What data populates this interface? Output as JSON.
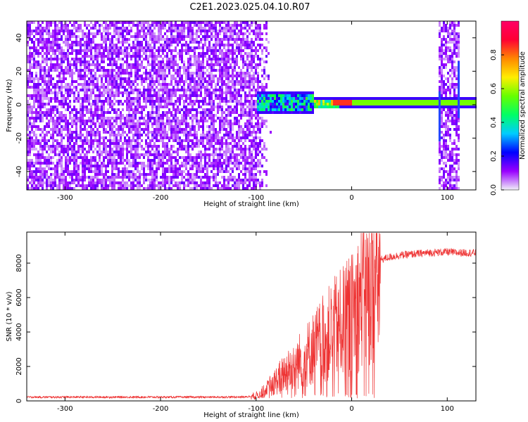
{
  "figure_title": "C2E1.2023.025.04.10.R07",
  "chart_data": [
    {
      "type": "heatmap",
      "title": "C2E1.2023.025.04.10.R07",
      "xlabel": "Height of straight line (km)",
      "ylabel": "Frequency (Hz)",
      "xlim": [
        -340,
        130
      ],
      "ylim": [
        -51,
        50
      ],
      "xticks": [
        -300,
        -200,
        -100,
        0,
        100
      ],
      "yticks": [
        -40,
        -20,
        0,
        20,
        40
      ],
      "colorbar": {
        "label": "Normalized spectral amplitude",
        "range": [
          0,
          1
        ],
        "ticks": [
          0.0,
          0.2,
          0.4,
          0.6,
          0.8
        ],
        "colors": [
          "#f0f0f8",
          "#9900ff",
          "#0000ff",
          "#00ccff",
          "#00ff66",
          "#66ff00",
          "#ffee00",
          "#ff8800",
          "#ff0033",
          "#ff0066"
        ]
      },
      "features": {
        "noise_region_x": [
          -340,
          -90
        ],
        "noise_region_amplitude": 0.1,
        "signal_line_x": [
          -100,
          130
        ],
        "signal_line_frequency_hz": 2,
        "peak_amplitude_x": [
          -20,
          0
        ],
        "peak_amplitude": 0.85,
        "noise_band_x": [
          90,
          112
        ]
      }
    },
    {
      "type": "line",
      "xlabel": "Height of straight line (km)",
      "ylabel": "SNR (10 * v/v)",
      "xlim": [
        -340,
        130
      ],
      "ylim": [
        0,
        9800
      ],
      "xticks": [
        -300,
        -200,
        -100,
        0,
        100
      ],
      "yticks": [
        0,
        2000,
        4000,
        6000,
        8000
      ],
      "color": "#ee3333",
      "series": [
        {
          "x": [
            -340,
            -300,
            -250,
            -200,
            -150,
            -110,
            -100,
            -90,
            -80,
            -70,
            -60,
            -50,
            -40,
            -30,
            -20,
            -10,
            0,
            10,
            20,
            30,
            40,
            50,
            60,
            70,
            80,
            90,
            100,
            110,
            120,
            130
          ],
          "values": [
            220,
            220,
            220,
            220,
            220,
            230,
            350,
            700,
            1300,
            1900,
            2400,
            2900,
            3500,
            4100,
            4700,
            5200,
            5700,
            6900,
            7800,
            8200,
            8350,
            8450,
            8500,
            8550,
            8600,
            8620,
            8650,
            8600,
            8600,
            8600
          ]
        }
      ]
    }
  ]
}
